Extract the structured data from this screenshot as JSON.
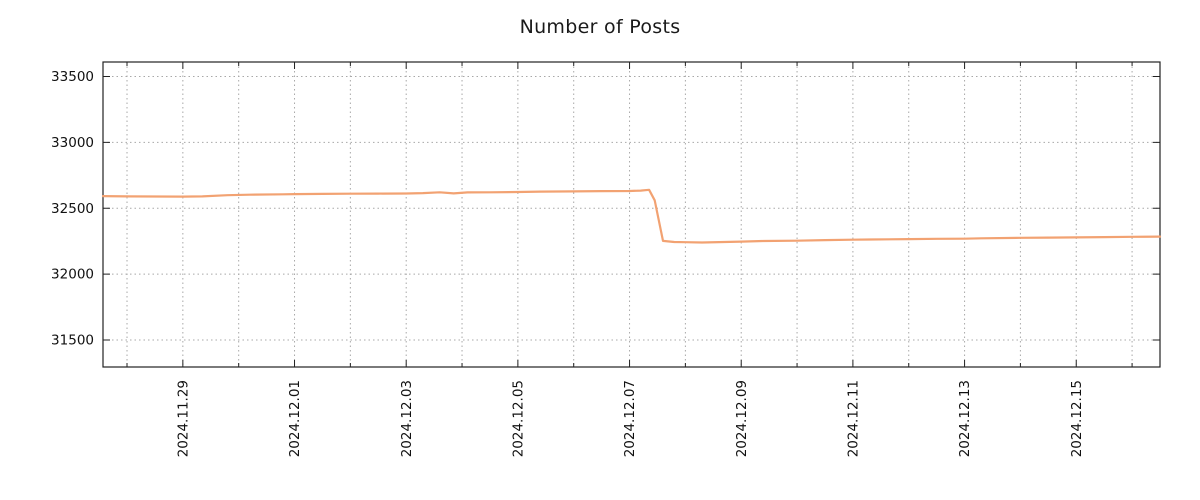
{
  "chart_data": {
    "type": "line",
    "title": "Number of Posts",
    "xlabel": "",
    "ylabel": "",
    "x_unit": "days from 2024-11-29",
    "xlim": [
      -1.43,
      17.5
    ],
    "ylim": [
      31295,
      33610
    ],
    "y_ticks": [
      31500,
      32000,
      32500,
      33000,
      33500
    ],
    "x_major_ticks": [
      {
        "d": 0,
        "label": "2024.11.29"
      },
      {
        "d": 2,
        "label": "2024.12.01"
      },
      {
        "d": 4,
        "label": "2024.12.03"
      },
      {
        "d": 6,
        "label": "2024.12.05"
      },
      {
        "d": 8,
        "label": "2024.12.07"
      },
      {
        "d": 10,
        "label": "2024.12.09"
      },
      {
        "d": 12,
        "label": "2024.12.11"
      },
      {
        "d": 14,
        "label": "2024.12.13"
      },
      {
        "d": 16,
        "label": "2024.12.15"
      }
    ],
    "x_minor_step": 1,
    "grid": true,
    "legend": "none",
    "colors": {
      "line": "#f2a272",
      "grid": "#a8a8a8",
      "border": "#222222",
      "text": "#111111"
    },
    "points": [
      [
        -1.43,
        32592
      ],
      [
        -1.0,
        32590
      ],
      [
        -0.5,
        32589
      ],
      [
        0,
        32588
      ],
      [
        0.35,
        32590
      ],
      [
        0.8,
        32599
      ],
      [
        1.2,
        32603
      ],
      [
        1.8,
        32606
      ],
      [
        2,
        32607
      ],
      [
        2.5,
        32609
      ],
      [
        3,
        32610
      ],
      [
        3.5,
        32611
      ],
      [
        4,
        32612
      ],
      [
        4.3,
        32615
      ],
      [
        4.6,
        32621
      ],
      [
        4.85,
        32613
      ],
      [
        5.1,
        32620
      ],
      [
        5.5,
        32621
      ],
      [
        6,
        32623
      ],
      [
        6.4,
        32626
      ],
      [
        7,
        32628
      ],
      [
        7.5,
        32630
      ],
      [
        8,
        32631
      ],
      [
        8.2,
        32634
      ],
      [
        8.35,
        32640
      ],
      [
        8.45,
        32560
      ],
      [
        8.6,
        32252
      ],
      [
        8.8,
        32244
      ],
      [
        9,
        32242
      ],
      [
        9.3,
        32240
      ],
      [
        9.6,
        32243
      ],
      [
        10,
        32247
      ],
      [
        10.4,
        32251
      ],
      [
        11,
        32254
      ],
      [
        11.5,
        32258
      ],
      [
        12,
        32261
      ],
      [
        12.3,
        32263
      ],
      [
        13,
        32266
      ],
      [
        13.5,
        32268
      ],
      [
        14,
        32269
      ],
      [
        14.3,
        32272
      ],
      [
        15,
        32276
      ],
      [
        15.5,
        32277
      ],
      [
        16,
        32279
      ],
      [
        16.5,
        32281
      ],
      [
        17,
        32283
      ],
      [
        17.5,
        32285
      ]
    ]
  }
}
